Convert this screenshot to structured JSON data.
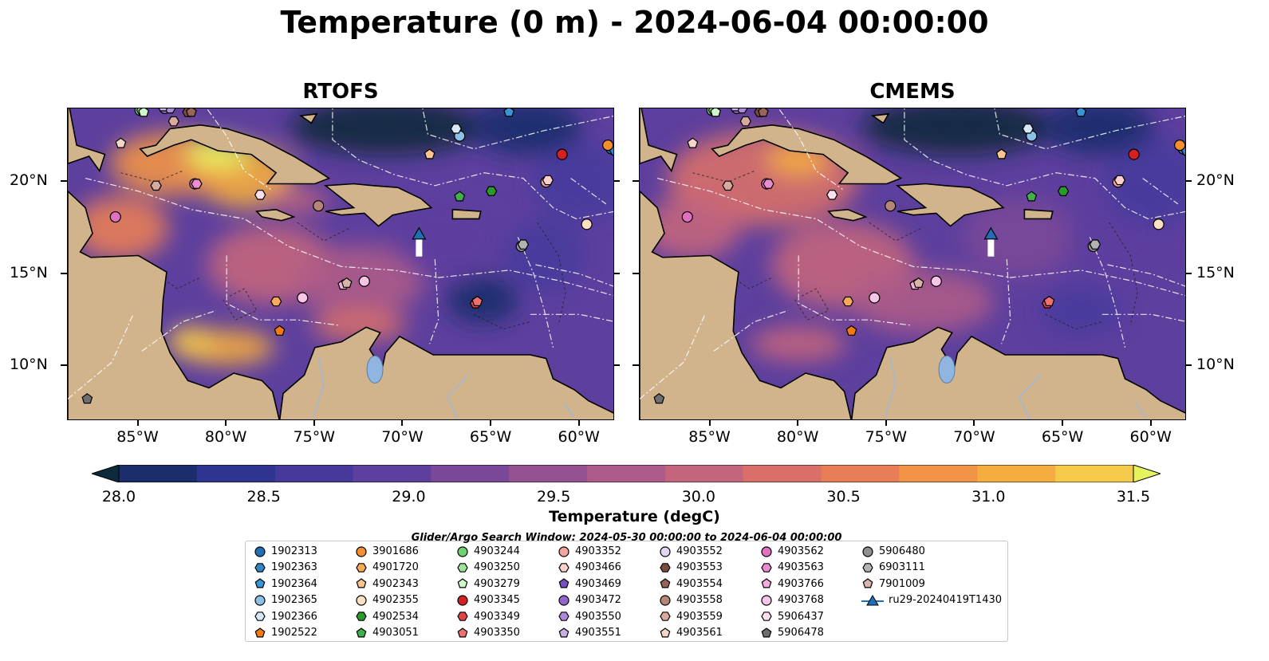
{
  "figure": {
    "title": "Temperature (0 m) - 2024-06-04 00:00:00",
    "panels": [
      {
        "name": "RTOFS"
      },
      {
        "name": "CMEMS"
      }
    ],
    "lon_ticks": [
      "85°W",
      "80°W",
      "75°W",
      "70°W",
      "65°W",
      "60°W"
    ],
    "lat_ticks": [
      "20°N",
      "15°N",
      "10°N"
    ],
    "lon_range": [
      -89,
      -58
    ],
    "lat_range": [
      7,
      24
    ]
  },
  "colorbar": {
    "label": "Temperature (degC)",
    "ticks": [
      "28.0",
      "28.5",
      "29.0",
      "29.5",
      "30.0",
      "30.5",
      "31.0",
      "31.5"
    ],
    "range": [
      28.0,
      31.5
    ],
    "extend": "both",
    "colors": [
      "#0b2a3c",
      "#1b2d6b",
      "#2f3490",
      "#453a9c",
      "#5d3f9e",
      "#7a4898",
      "#955291",
      "#ad5b88",
      "#c4657d",
      "#d87069",
      "#e87e57",
      "#f29447",
      "#f6ad3f",
      "#f5c94a",
      "#e6f35e"
    ]
  },
  "legend": {
    "title": "Glider/Argo Search Window: 2024-05-30 00:00:00 to 2024-06-04 00:00:00",
    "items": [
      {
        "label": "1902313",
        "marker": "circle",
        "color": "#1f6fb4"
      },
      {
        "label": "1902363",
        "marker": "hexagon",
        "color": "#2f87c8"
      },
      {
        "label": "1902364",
        "marker": "pentagon",
        "color": "#3a95d5"
      },
      {
        "label": "1902365",
        "marker": "circle",
        "color": "#8cc0e6"
      },
      {
        "label": "1902366",
        "marker": "hexagon",
        "color": "#d4e8f7"
      },
      {
        "label": "1902522",
        "marker": "pentagon",
        "color": "#f47b12"
      },
      {
        "label": "3901686",
        "marker": "circle",
        "color": "#f58f2e"
      },
      {
        "label": "4901720",
        "marker": "hexagon",
        "color": "#f9a95a"
      },
      {
        "label": "4902343",
        "marker": "pentagon",
        "color": "#fcc48f"
      },
      {
        "label": "4902355",
        "marker": "circle",
        "color": "#fde0c2"
      },
      {
        "label": "4902534",
        "marker": "hexagon",
        "color": "#2a9a2a"
      },
      {
        "label": "4903051",
        "marker": "pentagon",
        "color": "#3fb04a"
      },
      {
        "label": "4903244",
        "marker": "circle",
        "color": "#6fd26f"
      },
      {
        "label": "4903250",
        "marker": "hexagon",
        "color": "#9de49a"
      },
      {
        "label": "4903279",
        "marker": "pentagon",
        "color": "#d2f6cc"
      },
      {
        "label": "4903345",
        "marker": "circle",
        "color": "#d42020"
      },
      {
        "label": "4903349",
        "marker": "hexagon",
        "color": "#e04545"
      },
      {
        "label": "4903350",
        "marker": "pentagon",
        "color": "#ee7070"
      },
      {
        "label": "4903352",
        "marker": "circle",
        "color": "#f5a3a0"
      },
      {
        "label": "4903466",
        "marker": "hexagon",
        "color": "#fbcfcc"
      },
      {
        "label": "4903469",
        "marker": "pentagon",
        "color": "#7b4fc1"
      },
      {
        "label": "4903472",
        "marker": "circle",
        "color": "#9466cc"
      },
      {
        "label": "4903550",
        "marker": "hexagon",
        "color": "#ad8ad8"
      },
      {
        "label": "4903551",
        "marker": "pentagon",
        "color": "#c7afe5"
      },
      {
        "label": "4903552",
        "marker": "circle",
        "color": "#e2d6f2"
      },
      {
        "label": "4903553",
        "marker": "hexagon",
        "color": "#7a4a3f"
      },
      {
        "label": "4903554",
        "marker": "pentagon",
        "color": "#98645a"
      },
      {
        "label": "4903558",
        "marker": "circle",
        "color": "#b58577"
      },
      {
        "label": "4903559",
        "marker": "hexagon",
        "color": "#d6aa9d"
      },
      {
        "label": "4903561",
        "marker": "pentagon",
        "color": "#f4d5ca"
      },
      {
        "label": "4903562",
        "marker": "circle",
        "color": "#e070c0"
      },
      {
        "label": "4903563",
        "marker": "hexagon",
        "color": "#ea8cd0"
      },
      {
        "label": "4903766",
        "marker": "pentagon",
        "color": "#f4acde"
      },
      {
        "label": "4903768",
        "marker": "circle",
        "color": "#f8c5e6"
      },
      {
        "label": "5906437",
        "marker": "hexagon",
        "color": "#fce0f0"
      },
      {
        "label": "5906478",
        "marker": "pentagon",
        "color": "#6e6e6e"
      },
      {
        "label": "5906480",
        "marker": "circle",
        "color": "#8f8f8f"
      },
      {
        "label": "6903111",
        "marker": "hexagon",
        "color": "#b3b3b3"
      },
      {
        "label": "7901009",
        "marker": "pentagon",
        "color": "#d8b5a8"
      },
      {
        "label": "ru29-20240419T1430",
        "marker": "triangle-line",
        "color": "#1f6fb4"
      }
    ]
  },
  "floats": [
    {
      "label": "1902313",
      "lon": -58.2,
      "lat": 21.8
    },
    {
      "label": "1902363",
      "lon": -58.0,
      "lat": 21.7
    },
    {
      "label": "1902364",
      "lon": -64.0,
      "lat": 23.8
    },
    {
      "label": "1902365",
      "lon": -66.8,
      "lat": 22.5
    },
    {
      "label": "1902366",
      "lon": -67.0,
      "lat": 22.9
    },
    {
      "label": "1902522",
      "lon": -77.0,
      "lat": 11.9
    },
    {
      "label": "3901686",
      "lon": -58.4,
      "lat": 22.0
    },
    {
      "label": "4901720",
      "lon": -77.2,
      "lat": 13.5
    },
    {
      "label": "4902343",
      "lon": -68.5,
      "lat": 21.5
    },
    {
      "label": "4902355",
      "lon": -59.6,
      "lat": 17.7
    },
    {
      "label": "4902534",
      "lon": -65.0,
      "lat": 19.5
    },
    {
      "label": "4903051",
      "lon": -66.8,
      "lat": 19.2
    },
    {
      "label": "4903244",
      "lon": -84.9,
      "lat": 23.9
    },
    {
      "label": "4903250",
      "lon": -84.8,
      "lat": 23.9
    },
    {
      "label": "4903279",
      "lon": -84.7,
      "lat": 23.8
    },
    {
      "label": "4903345",
      "lon": -61.0,
      "lat": 21.5
    },
    {
      "label": "4903349",
      "lon": -65.9,
      "lat": 13.4
    },
    {
      "label": "4903350",
      "lon": -65.8,
      "lat": 13.5
    },
    {
      "label": "4903352",
      "lon": -61.9,
      "lat": 20.0
    },
    {
      "label": "4903466",
      "lon": -61.8,
      "lat": 20.1
    },
    {
      "label": "4903469",
      "lon": -83.4,
      "lat": 24.1
    },
    {
      "label": "4903472",
      "lon": -83.5,
      "lat": 24.0
    },
    {
      "label": "4903550",
      "lon": -83.2,
      "lat": 24.0
    },
    {
      "label": "4903551",
      "lon": -83.6,
      "lat": 24.1
    },
    {
      "label": "4903552",
      "lon": -83.9,
      "lat": 24.3
    },
    {
      "label": "4903553",
      "lon": -82.2,
      "lat": 23.8
    },
    {
      "label": "4903554",
      "lon": -82.0,
      "lat": 23.8
    },
    {
      "label": "4903558",
      "lon": -74.8,
      "lat": 18.7
    },
    {
      "label": "4903559",
      "lon": -83.0,
      "lat": 23.3
    },
    {
      "label": "4903561",
      "lon": -86.0,
      "lat": 22.1
    },
    {
      "label": "4903562",
      "lon": -81.8,
      "lat": 19.9
    },
    {
      "label": "4903563",
      "lon": -81.7,
      "lat": 19.9
    },
    {
      "label": "4903766",
      "lon": -73.4,
      "lat": 14.4
    },
    {
      "label": "4903768",
      "lon": -75.7,
      "lat": 13.7
    },
    {
      "label": "5906437",
      "lon": -78.1,
      "lat": 19.3
    },
    {
      "label": "5906478",
      "lon": -87.9,
      "lat": 8.2
    },
    {
      "label": "5906480",
      "lon": -63.3,
      "lat": 16.5
    },
    {
      "label": "6903111",
      "lon": -63.2,
      "lat": 16.6
    },
    {
      "label": "7901009",
      "lon": -73.2,
      "lat": 14.5
    },
    {
      "label": "4903768",
      "lon": -72.2,
      "lat": 14.6
    },
    {
      "label": "4903562",
      "lon": -86.3,
      "lat": 18.1
    },
    {
      "label": "4903559",
      "lon": -84.0,
      "lat": 19.8
    }
  ],
  "glider": {
    "label": "ru29-20240419T1430",
    "lon": -69.1,
    "lat": 16.9
  }
}
